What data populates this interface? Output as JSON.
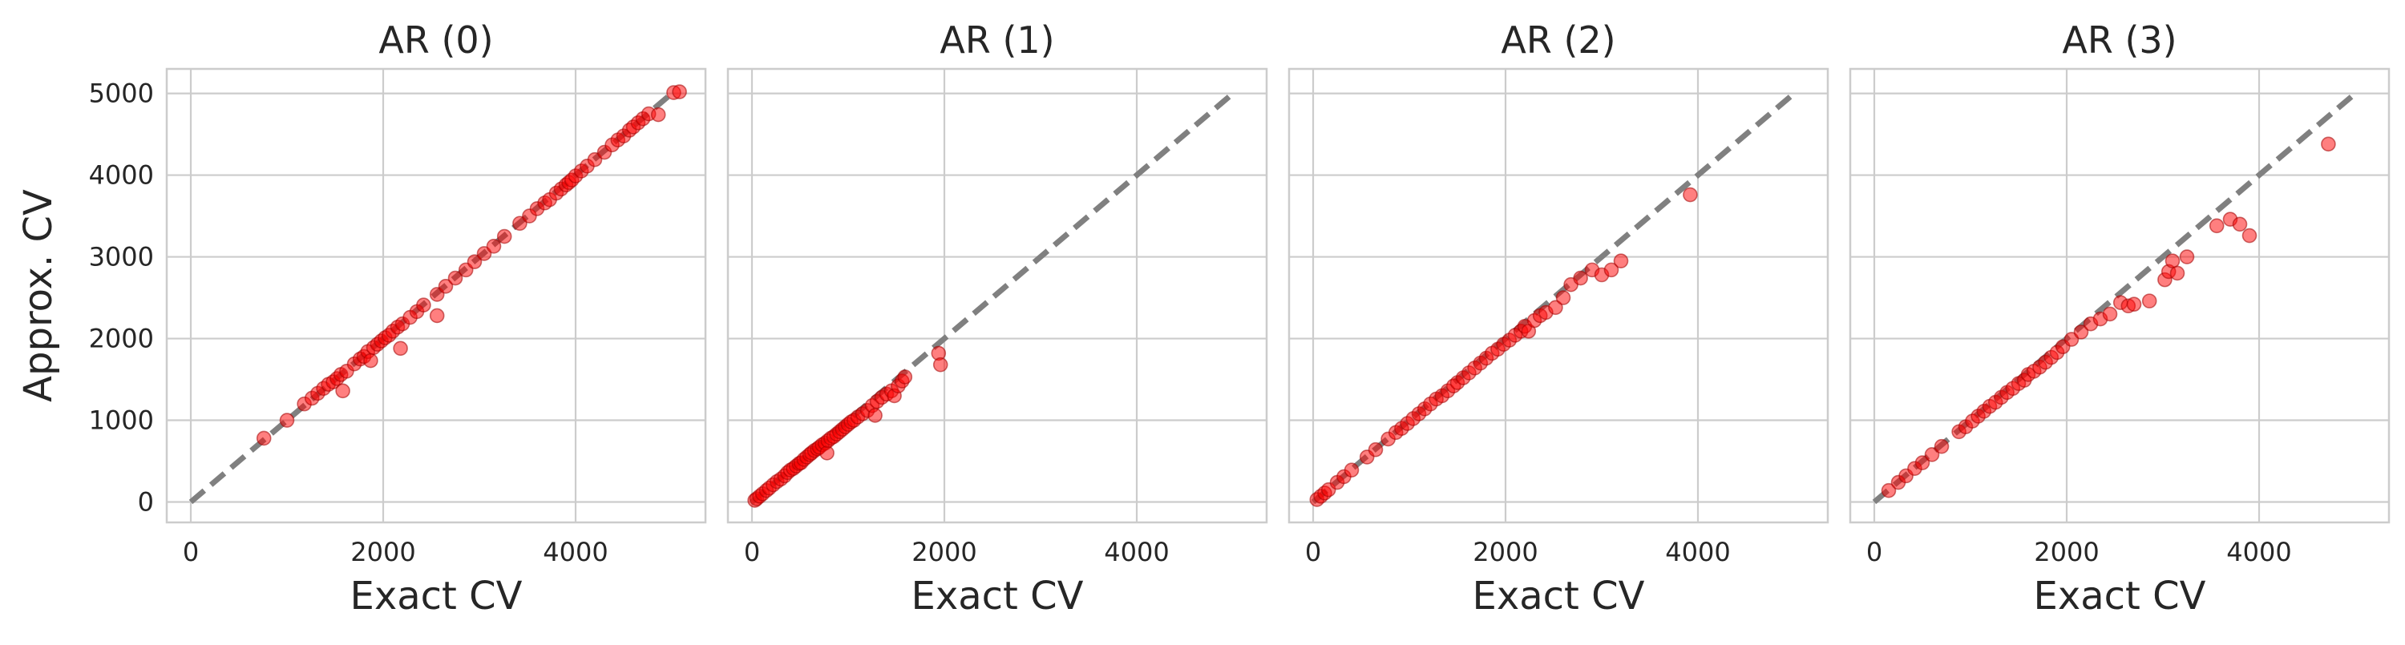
{
  "chart_data": [
    {
      "type": "scatter",
      "title": "AR (0)",
      "xlabel": "Exact CV",
      "ylabel": "Approx. CV",
      "xlim": [
        -250,
        5350
      ],
      "ylim": [
        -250,
        5300
      ],
      "xticks": [
        "0",
        "2000",
        "4000"
      ],
      "yticks": [
        "0",
        "1000",
        "2000",
        "3000",
        "4000",
        "5000"
      ],
      "grid": true,
      "reference_line": {
        "from": [
          0,
          0
        ],
        "to": [
          5000,
          5000
        ],
        "style": "dashed",
        "color": "#808080"
      },
      "point_color": "#ff0000",
      "points": [
        [
          760,
          780
        ],
        [
          1000,
          1000
        ],
        [
          1180,
          1200
        ],
        [
          1260,
          1270
        ],
        [
          1320,
          1330
        ],
        [
          1380,
          1390
        ],
        [
          1430,
          1440
        ],
        [
          1480,
          1470
        ],
        [
          1520,
          1510
        ],
        [
          1560,
          1560
        ],
        [
          1620,
          1600
        ],
        [
          1580,
          1360
        ],
        [
          1700,
          1690
        ],
        [
          1760,
          1750
        ],
        [
          1800,
          1780
        ],
        [
          1840,
          1840
        ],
        [
          1870,
          1730
        ],
        [
          1900,
          1890
        ],
        [
          1940,
          1930
        ],
        [
          1980,
          1970
        ],
        [
          2020,
          2010
        ],
        [
          2060,
          2040
        ],
        [
          2100,
          2090
        ],
        [
          2150,
          2140
        ],
        [
          2200,
          2180
        ],
        [
          2180,
          1880
        ],
        [
          2280,
          2260
        ],
        [
          2350,
          2330
        ],
        [
          2420,
          2410
        ],
        [
          2560,
          2280
        ],
        [
          2560,
          2540
        ],
        [
          2650,
          2640
        ],
        [
          2750,
          2740
        ],
        [
          2860,
          2840
        ],
        [
          2950,
          2940
        ],
        [
          3050,
          3040
        ],
        [
          3150,
          3130
        ],
        [
          3260,
          3250
        ],
        [
          3420,
          3410
        ],
        [
          3520,
          3500
        ],
        [
          3600,
          3590
        ],
        [
          3680,
          3660
        ],
        [
          3730,
          3700
        ],
        [
          3800,
          3780
        ],
        [
          3850,
          3830
        ],
        [
          3900,
          3880
        ],
        [
          3930,
          3910
        ],
        [
          3960,
          3940
        ],
        [
          4000,
          3990
        ],
        [
          4060,
          4050
        ],
        [
          4120,
          4110
        ],
        [
          4200,
          4190
        ],
        [
          4300,
          4280
        ],
        [
          4380,
          4370
        ],
        [
          4440,
          4430
        ],
        [
          4500,
          4480
        ],
        [
          4560,
          4550
        ],
        [
          4600,
          4590
        ],
        [
          4650,
          4640
        ],
        [
          4700,
          4690
        ],
        [
          4760,
          4750
        ],
        [
          4860,
          4740
        ],
        [
          5020,
          5010
        ],
        [
          5080,
          5020
        ]
      ]
    },
    {
      "type": "scatter",
      "title": "AR (1)",
      "xlabel": "Exact CV",
      "ylabel": "",
      "xlim": [
        -250,
        5350
      ],
      "ylim": [
        -250,
        5300
      ],
      "xticks": [
        "0",
        "2000",
        "4000"
      ],
      "yticks": [],
      "grid": true,
      "reference_line": {
        "from": [
          0,
          0
        ],
        "to": [
          5000,
          5000
        ],
        "style": "dashed",
        "color": "#808080"
      },
      "point_color": "#ff0000",
      "points": [
        [
          30,
          20
        ],
        [
          50,
          40
        ],
        [
          80,
          70
        ],
        [
          110,
          100
        ],
        [
          150,
          140
        ],
        [
          180,
          170
        ],
        [
          220,
          210
        ],
        [
          260,
          250
        ],
        [
          300,
          280
        ],
        [
          340,
          320
        ],
        [
          370,
          360
        ],
        [
          400,
          390
        ],
        [
          430,
          410
        ],
        [
          460,
          440
        ],
        [
          490,
          470
        ],
        [
          510,
          480
        ],
        [
          540,
          520
        ],
        [
          570,
          550
        ],
        [
          600,
          580
        ],
        [
          620,
          600
        ],
        [
          650,
          630
        ],
        [
          680,
          650
        ],
        [
          700,
          670
        ],
        [
          730,
          700
        ],
        [
          760,
          720
        ],
        [
          780,
          600
        ],
        [
          790,
          750
        ],
        [
          820,
          780
        ],
        [
          850,
          800
        ],
        [
          880,
          830
        ],
        [
          910,
          860
        ],
        [
          940,
          890
        ],
        [
          970,
          920
        ],
        [
          1000,
          950
        ],
        [
          1030,
          980
        ],
        [
          1060,
          1000
        ],
        [
          1100,
          1040
        ],
        [
          1150,
          1080
        ],
        [
          1200,
          1120
        ],
        [
          1250,
          1180
        ],
        [
          1280,
          1060
        ],
        [
          1300,
          1230
        ],
        [
          1350,
          1280
        ],
        [
          1400,
          1320
        ],
        [
          1450,
          1360
        ],
        [
          1480,
          1300
        ],
        [
          1520,
          1420
        ],
        [
          1560,
          1480
        ],
        [
          1590,
          1530
        ],
        [
          1940,
          1820
        ],
        [
          1960,
          1680
        ]
      ]
    },
    {
      "type": "scatter",
      "title": "AR (2)",
      "xlabel": "Exact CV",
      "ylabel": "",
      "xlim": [
        -250,
        5350
      ],
      "ylim": [
        -250,
        5300
      ],
      "xticks": [
        "0",
        "2000",
        "4000"
      ],
      "yticks": [],
      "grid": true,
      "reference_line": {
        "from": [
          0,
          0
        ],
        "to": [
          5000,
          5000
        ],
        "style": "dashed",
        "color": "#808080"
      },
      "point_color": "#ff0000",
      "points": [
        [
          40,
          30
        ],
        [
          80,
          70
        ],
        [
          120,
          110
        ],
        [
          160,
          150
        ],
        [
          250,
          240
        ],
        [
          320,
          310
        ],
        [
          400,
          390
        ],
        [
          560,
          550
        ],
        [
          650,
          640
        ],
        [
          780,
          770
        ],
        [
          860,
          850
        ],
        [
          920,
          900
        ],
        [
          980,
          960
        ],
        [
          1040,
          1020
        ],
        [
          1100,
          1080
        ],
        [
          1160,
          1140
        ],
        [
          1220,
          1200
        ],
        [
          1280,
          1260
        ],
        [
          1340,
          1300
        ],
        [
          1400,
          1360
        ],
        [
          1460,
          1420
        ],
        [
          1500,
          1460
        ],
        [
          1560,
          1520
        ],
        [
          1620,
          1580
        ],
        [
          1680,
          1640
        ],
        [
          1740,
          1700
        ],
        [
          1800,
          1760
        ],
        [
          1860,
          1820
        ],
        [
          1920,
          1870
        ],
        [
          1980,
          1930
        ],
        [
          2040,
          1980
        ],
        [
          2100,
          2040
        ],
        [
          2160,
          2090
        ],
        [
          2200,
          2150
        ],
        [
          2240,
          2090
        ],
        [
          2300,
          2220
        ],
        [
          2360,
          2280
        ],
        [
          2420,
          2320
        ],
        [
          2520,
          2380
        ],
        [
          2600,
          2500
        ],
        [
          2680,
          2660
        ],
        [
          2780,
          2740
        ],
        [
          2900,
          2840
        ],
        [
          3000,
          2780
        ],
        [
          3100,
          2840
        ],
        [
          3200,
          2950
        ],
        [
          3920,
          3760
        ]
      ]
    },
    {
      "type": "scatter",
      "title": "AR (3)",
      "xlabel": "Exact CV",
      "ylabel": "",
      "xlim": [
        -250,
        5350
      ],
      "ylim": [
        -250,
        5300
      ],
      "xticks": [
        "0",
        "2000",
        "4000"
      ],
      "yticks": [],
      "grid": true,
      "reference_line": {
        "from": [
          0,
          0
        ],
        "to": [
          5000,
          5000
        ],
        "style": "dashed",
        "color": "#808080"
      },
      "point_color": "#ff0000",
      "points": [
        [
          150,
          140
        ],
        [
          250,
          240
        ],
        [
          330,
          320
        ],
        [
          420,
          410
        ],
        [
          500,
          480
        ],
        [
          600,
          580
        ],
        [
          700,
          680
        ],
        [
          880,
          860
        ],
        [
          950,
          920
        ],
        [
          1020,
          990
        ],
        [
          1080,
          1050
        ],
        [
          1140,
          1110
        ],
        [
          1200,
          1170
        ],
        [
          1260,
          1220
        ],
        [
          1320,
          1280
        ],
        [
          1380,
          1340
        ],
        [
          1440,
          1390
        ],
        [
          1500,
          1450
        ],
        [
          1560,
          1490
        ],
        [
          1600,
          1560
        ],
        [
          1660,
          1600
        ],
        [
          1720,
          1650
        ],
        [
          1780,
          1710
        ],
        [
          1840,
          1770
        ],
        [
          1900,
          1830
        ],
        [
          1960,
          1900
        ],
        [
          2050,
          1990
        ],
        [
          2150,
          2080
        ],
        [
          2250,
          2180
        ],
        [
          2350,
          2240
        ],
        [
          2450,
          2300
        ],
        [
          2560,
          2440
        ],
        [
          2640,
          2400
        ],
        [
          2700,
          2420
        ],
        [
          2860,
          2460
        ],
        [
          3020,
          2720
        ],
        [
          3060,
          2820
        ],
        [
          3100,
          2950
        ],
        [
          3150,
          2800
        ],
        [
          3250,
          3000
        ],
        [
          3560,
          3380
        ],
        [
          3700,
          3460
        ],
        [
          3800,
          3400
        ],
        [
          3900,
          3260
        ],
        [
          4720,
          4380
        ]
      ]
    }
  ]
}
